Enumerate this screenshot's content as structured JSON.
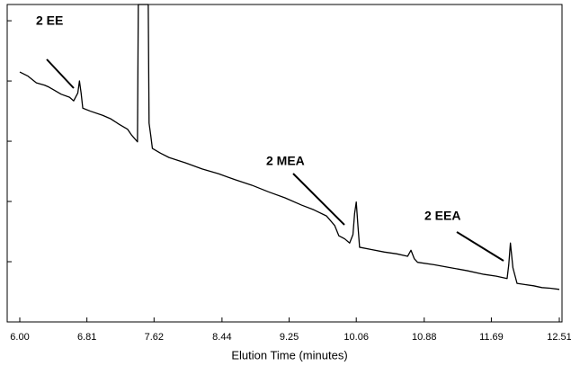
{
  "chart_data": {
    "type": "line",
    "x_label": "Elution Time (minutes)",
    "color": "#000000",
    "xlim": [
      6.0,
      12.51
    ],
    "xticks": [
      {
        "value": 6,
        "label": "6.00"
      },
      6.81,
      7.62,
      8.44,
      9.25,
      10.06,
      10.88,
      11.69,
      12.51
    ],
    "ylim": [
      0,
      5.27
    ],
    "yticks": [
      1,
      2,
      3,
      4,
      5
    ],
    "annotations": [
      "2 EE",
      "2 MEA",
      "2 EEA"
    ],
    "x": [
      6.0,
      6.1,
      6.2,
      6.3,
      6.35,
      6.4,
      6.5,
      6.6,
      6.65,
      6.7,
      6.72,
      6.74,
      6.76,
      6.85,
      7.0,
      7.1,
      7.2,
      7.3,
      7.35,
      7.42,
      7.43,
      7.55,
      7.56,
      7.58,
      7.6,
      7.7,
      7.8,
      8.0,
      8.2,
      8.4,
      8.6,
      8.8,
      9.0,
      9.2,
      9.4,
      9.55,
      9.7,
      9.8,
      9.85,
      9.92,
      9.98,
      10.02,
      10.04,
      10.06,
      10.08,
      10.1,
      10.25,
      10.4,
      10.55,
      10.68,
      10.72,
      10.76,
      10.8,
      11.0,
      11.2,
      11.4,
      11.6,
      11.75,
      11.88,
      11.9,
      11.92,
      11.95,
      12.0,
      12.1,
      12.2,
      12.3,
      12.4,
      12.51
    ],
    "values": [
      4.15,
      4.08,
      3.97,
      3.93,
      3.9,
      3.86,
      3.78,
      3.73,
      3.67,
      3.8,
      4.0,
      3.8,
      3.55,
      3.5,
      3.43,
      3.37,
      3.28,
      3.2,
      3.1,
      2.99,
      5.27,
      5.27,
      3.3,
      3.1,
      2.88,
      2.8,
      2.73,
      2.64,
      2.54,
      2.46,
      2.36,
      2.27,
      2.16,
      2.06,
      1.94,
      1.86,
      1.76,
      1.6,
      1.43,
      1.38,
      1.31,
      1.45,
      1.8,
      1.99,
      1.6,
      1.24,
      1.2,
      1.16,
      1.13,
      1.09,
      1.19,
      1.05,
      0.99,
      0.95,
      0.9,
      0.85,
      0.79,
      0.76,
      0.72,
      0.95,
      1.31,
      0.9,
      0.64,
      0.62,
      0.6,
      0.57,
      0.56,
      0.54
    ]
  }
}
